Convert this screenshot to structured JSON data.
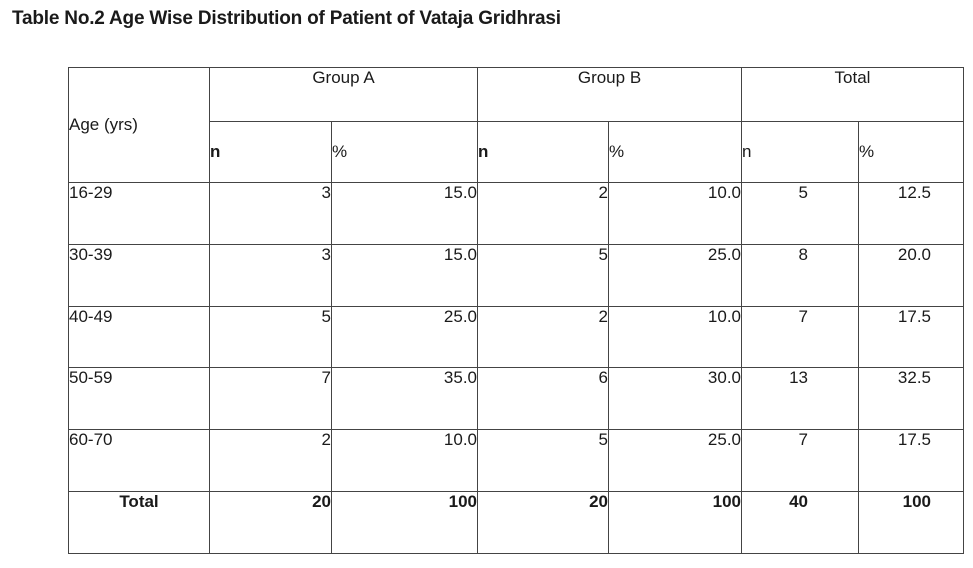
{
  "title": "Table No.2 Age Wise Distribution of Patient of Vataja Gridhrasi",
  "table": {
    "age_header": "Age (yrs)",
    "groups": [
      "Group A",
      "Group B",
      "Total"
    ],
    "sub_headers": {
      "a_n": "n",
      "a_pct": "%",
      "b_n": "n",
      "b_pct": "%",
      "t_n": "n",
      "t_pct": "%"
    },
    "rows": [
      {
        "age": "16-29",
        "a_n": "3",
        "a_pct": "15.0",
        "b_n": "2",
        "b_pct": "10.0",
        "t_n": "5",
        "t_pct": "12.5"
      },
      {
        "age": "30-39",
        "a_n": "3",
        "a_pct": "15.0",
        "b_n": "5",
        "b_pct": "25.0",
        "t_n": "8",
        "t_pct": "20.0"
      },
      {
        "age": "40-49",
        "a_n": "5",
        "a_pct": "25.0",
        "b_n": "2",
        "b_pct": "10.0",
        "t_n": "7",
        "t_pct": "17.5"
      },
      {
        "age": "50-59",
        "a_n": "7",
        "a_pct": "35.0",
        "b_n": "6",
        "b_pct": "30.0",
        "t_n": "13",
        "t_pct": "32.5"
      },
      {
        "age": "60-70",
        "a_n": "2",
        "a_pct": "10.0",
        "b_n": "5",
        "b_pct": "25.0",
        "t_n": "7",
        "t_pct": "17.5"
      }
    ],
    "total": {
      "label": "Total",
      "a_n": "20",
      "a_pct": "100",
      "b_n": "20",
      "b_pct": "100",
      "t_n": "40",
      "t_pct": "100"
    }
  }
}
